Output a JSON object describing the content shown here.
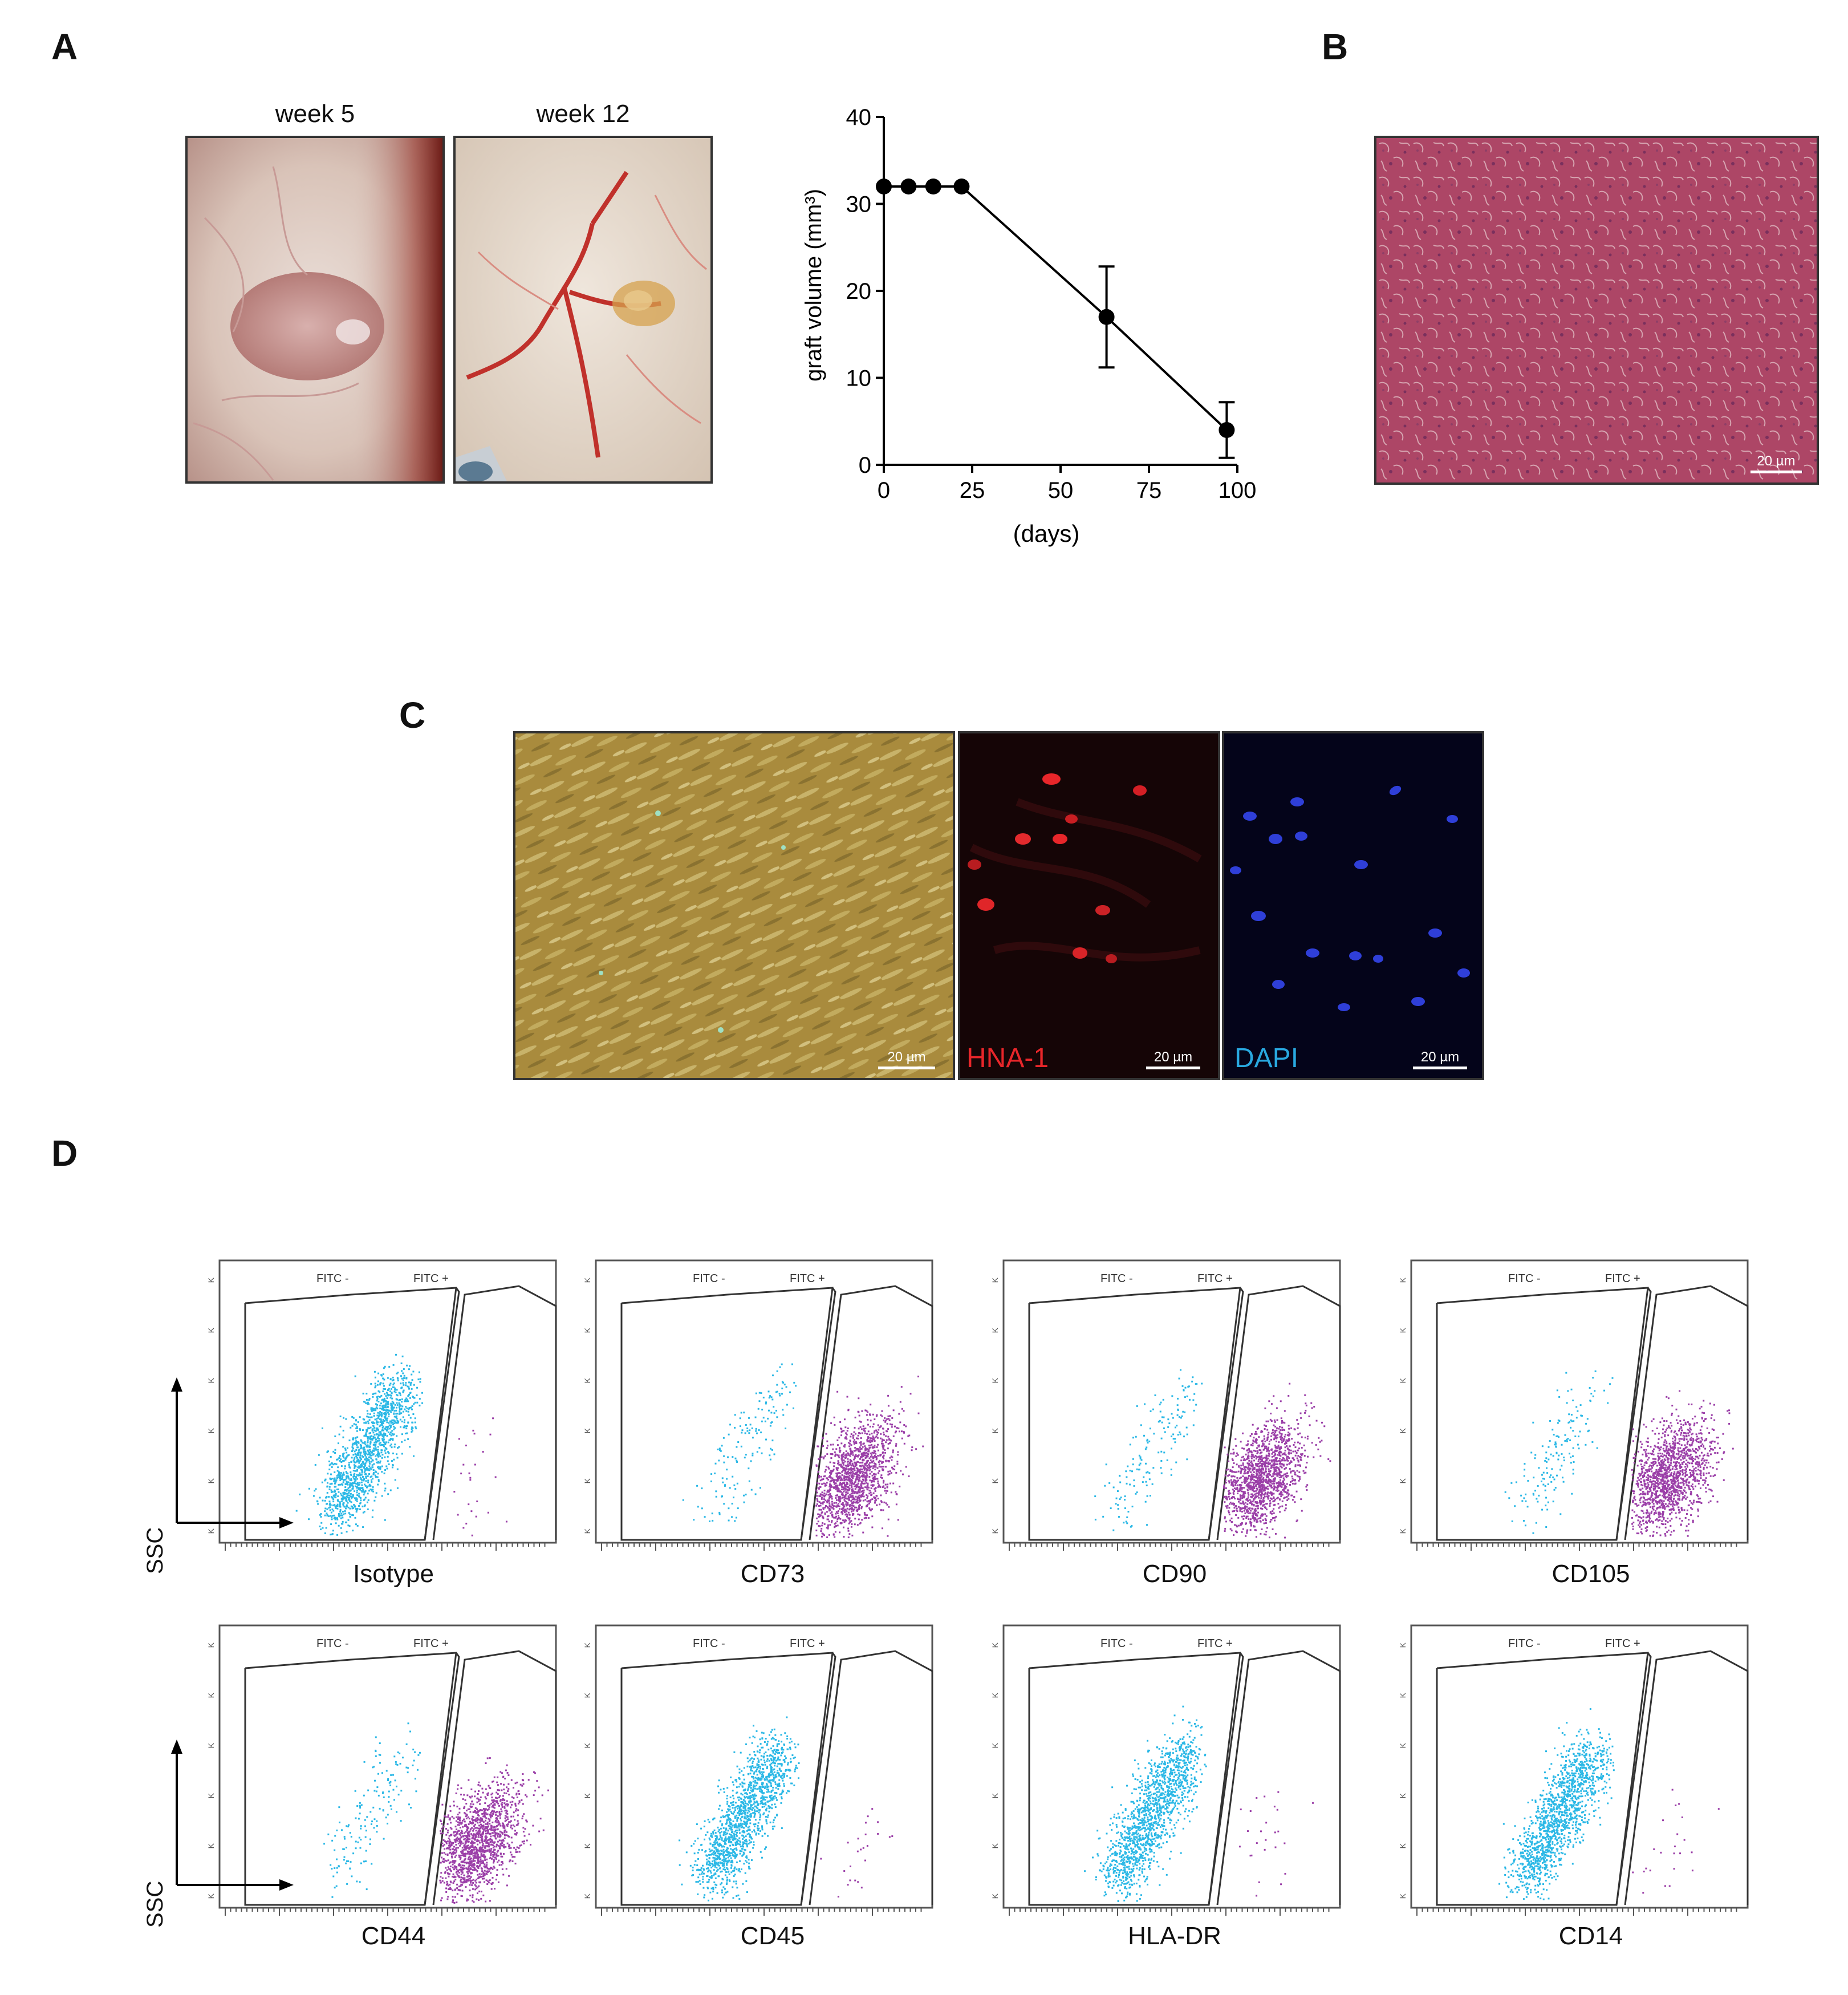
{
  "panels": {
    "A": "A",
    "B": "B",
    "C": "C",
    "D": "D"
  },
  "panel_a": {
    "photo_labels": [
      "week 5",
      "week 12"
    ]
  },
  "chart_data": {
    "type": "line",
    "xlabel": "(days)",
    "ylabel": "graft volume (mm³)",
    "xlim": [
      0,
      100
    ],
    "ylim": [
      0,
      40
    ],
    "xticks": [
      0,
      25,
      50,
      75,
      100
    ],
    "yticks": [
      0,
      10,
      20,
      30,
      40
    ],
    "series": [
      {
        "x": [
          0,
          7,
          14,
          22,
          63,
          97
        ],
        "y": [
          32,
          32,
          32,
          32,
          17,
          4
        ],
        "err": [
          0,
          0,
          0,
          0,
          5.8,
          3.2
        ]
      }
    ],
    "grid": false
  },
  "panel_b": {
    "scale": "20 µm"
  },
  "panel_c": {
    "scale": "20 µm",
    "labels": [
      "HNA-1",
      "DAPI"
    ],
    "label_colors": [
      "#e8262a",
      "#29a8e0"
    ]
  },
  "panel_d": {
    "gate_labels": [
      "FITC -",
      "FITC +"
    ],
    "axis_label": "SSC",
    "plots": [
      "Isotype",
      "CD73",
      "CD90",
      "CD105",
      "CD44",
      "CD45",
      "HLA-DR",
      "CD14"
    ],
    "colors": {
      "negative": "#2bb8e6",
      "positive": "#9b3fa8"
    }
  }
}
